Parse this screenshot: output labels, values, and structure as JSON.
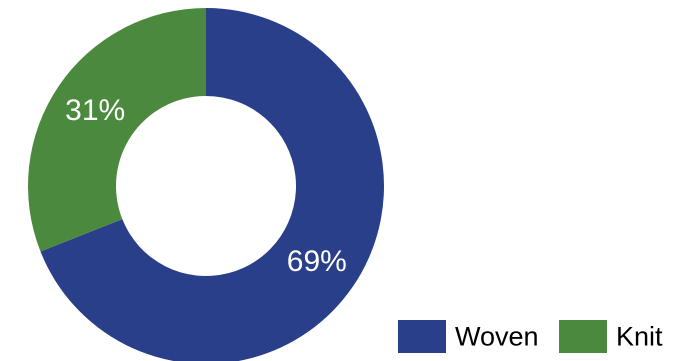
{
  "chart_data": {
    "type": "pie",
    "variant": "donut",
    "categories": [
      "Woven",
      "Knit"
    ],
    "values": [
      69,
      31
    ],
    "labels": [
      "69%",
      "31%"
    ],
    "colors": [
      "#2a3f8a",
      "#4b8a3e"
    ],
    "title": "",
    "legend": {
      "placement": "bottom-right",
      "items": [
        {
          "label": "Woven",
          "color": "#2a3f8a"
        },
        {
          "label": "Knit",
          "color": "#4b8a3e"
        }
      ]
    }
  }
}
